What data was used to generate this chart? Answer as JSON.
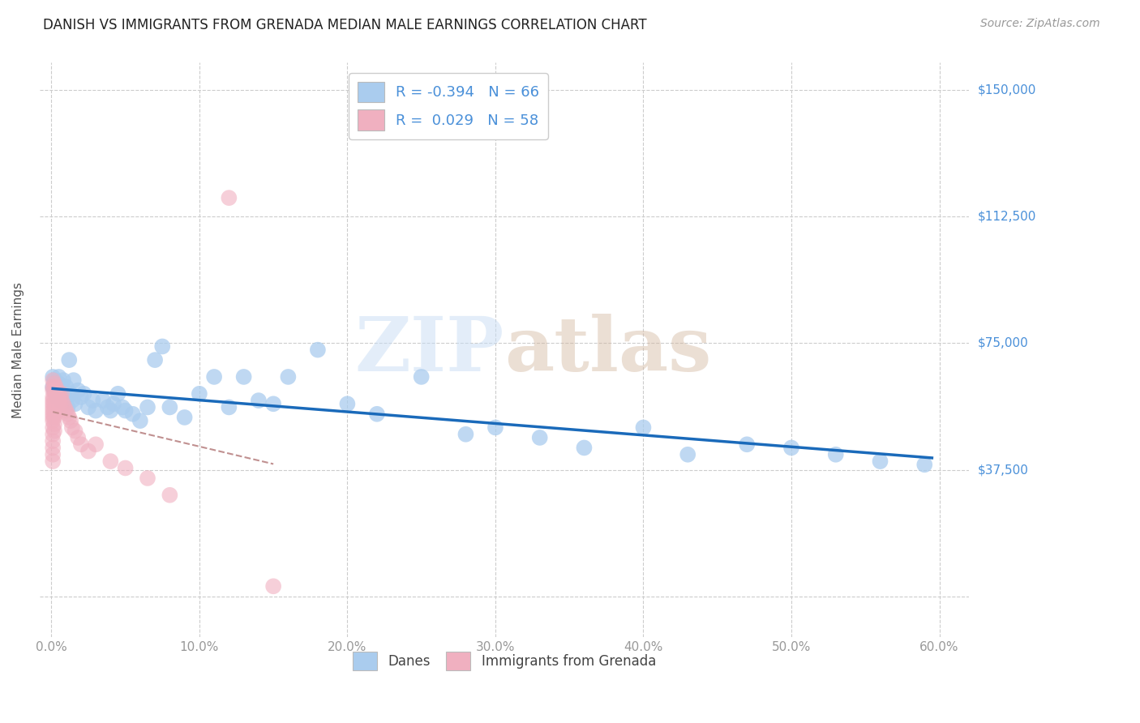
{
  "title": "DANISH VS IMMIGRANTS FROM GRENADA MEDIAN MALE EARNINGS CORRELATION CHART",
  "source": "Source: ZipAtlas.com",
  "ylabel": "Median Male Earnings",
  "danes_R": -0.394,
  "danes_N": 66,
  "grenada_R": 0.029,
  "grenada_N": 58,
  "danes_color": "#aaccee",
  "grenada_color": "#f0b0c0",
  "danes_line_color": "#1a6aba",
  "grenada_line_color": "#c09090",
  "watermark": "ZIPatlas",
  "danes_x": [
    0.001,
    0.001,
    0.002,
    0.002,
    0.003,
    0.003,
    0.004,
    0.004,
    0.005,
    0.005,
    0.006,
    0.006,
    0.007,
    0.007,
    0.008,
    0.009,
    0.01,
    0.01,
    0.011,
    0.012,
    0.013,
    0.014,
    0.015,
    0.016,
    0.018,
    0.02,
    0.022,
    0.025,
    0.028,
    0.03,
    0.035,
    0.038,
    0.04,
    0.042,
    0.045,
    0.048,
    0.05,
    0.055,
    0.06,
    0.065,
    0.07,
    0.075,
    0.08,
    0.09,
    0.1,
    0.11,
    0.12,
    0.13,
    0.14,
    0.15,
    0.16,
    0.18,
    0.2,
    0.22,
    0.25,
    0.28,
    0.3,
    0.33,
    0.36,
    0.4,
    0.43,
    0.47,
    0.5,
    0.53,
    0.56,
    0.59
  ],
  "danes_y": [
    62000,
    65000,
    61000,
    64000,
    63000,
    60000,
    62000,
    59000,
    63000,
    65000,
    61000,
    58000,
    62000,
    60000,
    64000,
    59000,
    62000,
    58000,
    56000,
    70000,
    60000,
    58000,
    64000,
    57000,
    61000,
    59000,
    60000,
    56000,
    58000,
    55000,
    58000,
    56000,
    55000,
    57000,
    60000,
    56000,
    55000,
    54000,
    52000,
    56000,
    70000,
    74000,
    56000,
    53000,
    60000,
    65000,
    56000,
    65000,
    58000,
    57000,
    65000,
    73000,
    57000,
    54000,
    65000,
    48000,
    50000,
    47000,
    44000,
    50000,
    42000,
    45000,
    44000,
    42000,
    40000,
    39000
  ],
  "grenada_x": [
    0.001,
    0.001,
    0.001,
    0.001,
    0.001,
    0.001,
    0.001,
    0.001,
    0.001,
    0.001,
    0.001,
    0.001,
    0.001,
    0.001,
    0.001,
    0.001,
    0.001,
    0.002,
    0.002,
    0.002,
    0.002,
    0.002,
    0.002,
    0.002,
    0.002,
    0.003,
    0.003,
    0.003,
    0.003,
    0.003,
    0.004,
    0.004,
    0.004,
    0.004,
    0.005,
    0.005,
    0.006,
    0.006,
    0.007,
    0.007,
    0.008,
    0.009,
    0.01,
    0.011,
    0.012,
    0.013,
    0.014,
    0.016,
    0.018,
    0.02,
    0.025,
    0.03,
    0.04,
    0.05,
    0.065,
    0.08,
    0.12,
    0.15
  ],
  "grenada_y": [
    64000,
    62000,
    61000,
    59000,
    58000,
    57000,
    56000,
    55000,
    54000,
    53000,
    52000,
    50000,
    48000,
    46000,
    44000,
    42000,
    40000,
    63000,
    61000,
    59000,
    57000,
    55000,
    53000,
    51000,
    49000,
    62000,
    60000,
    58000,
    56000,
    54000,
    61000,
    59000,
    57000,
    55000,
    60000,
    58000,
    59000,
    57000,
    60000,
    58000,
    57000,
    56000,
    55000,
    54000,
    53000,
    52000,
    50000,
    49000,
    47000,
    45000,
    43000,
    45000,
    40000,
    38000,
    35000,
    30000,
    118000,
    3000
  ],
  "yticks": [
    0,
    37500,
    75000,
    112500,
    150000
  ],
  "xticks": [
    0.0,
    0.1,
    0.2,
    0.3,
    0.4,
    0.5,
    0.6
  ],
  "xtick_labels": [
    "0.0%",
    "10.0%",
    "20.0%",
    "30.0%",
    "40.0%",
    "50.0%",
    "60.0%"
  ],
  "ytick_right_labels": [
    "$37,500",
    "$75,000",
    "$112,500",
    "$150,000"
  ],
  "ytick_right_vals": [
    37500,
    75000,
    112500,
    150000
  ]
}
